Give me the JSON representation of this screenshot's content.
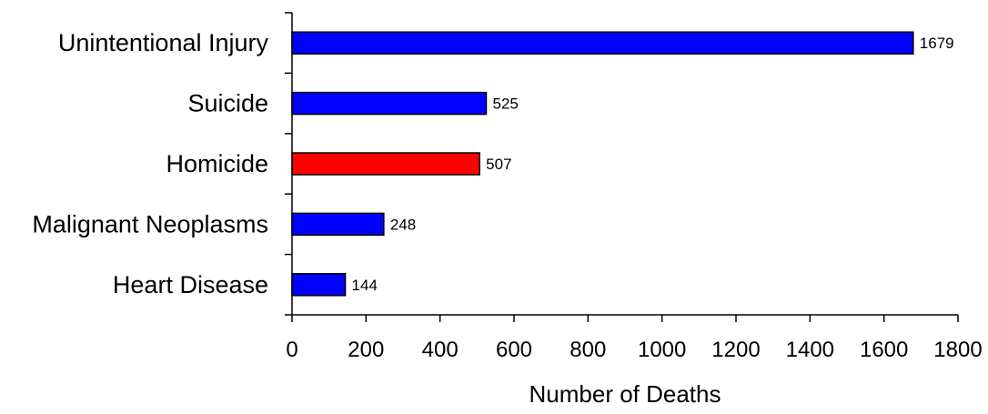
{
  "chart_data": {
    "type": "bar",
    "orientation": "horizontal",
    "categories": [
      "Unintentional Injury",
      "Suicide",
      "Homicide",
      "Malignant Neoplasms",
      "Heart Disease"
    ],
    "values": [
      1679,
      525,
      507,
      248,
      144
    ],
    "bar_colors": [
      "#0000ff",
      "#0000ff",
      "#ff0000",
      "#0000ff",
      "#0000ff"
    ],
    "data_labels": [
      "1679",
      "525",
      "507",
      "248",
      "144"
    ],
    "xlabel": "Number of Deaths",
    "ylabel": "",
    "title": "",
    "xlim": [
      0,
      1800
    ],
    "xticks": [
      0,
      200,
      400,
      600,
      800,
      1000,
      1200,
      1400,
      1600,
      1800
    ],
    "grid": false,
    "legend": "none"
  }
}
